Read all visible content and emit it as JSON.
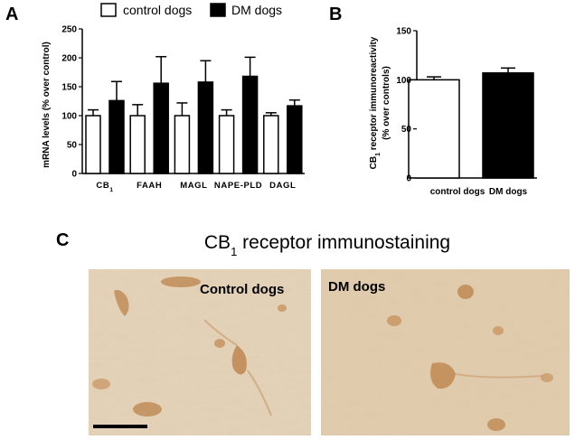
{
  "panels": {
    "a": "A",
    "b": "B",
    "c": "C"
  },
  "legend": {
    "items": [
      {
        "label": "control dogs",
        "color": "#ffffff"
      },
      {
        "label": "DM dogs",
        "color": "#000000"
      }
    ]
  },
  "chart_data": [
    {
      "type": "bar",
      "panel": "A",
      "ylabel": "mRNA levels (% over control)",
      "ylim": [
        0,
        250
      ],
      "yticks": [
        "0",
        "50",
        "100",
        "150",
        "200",
        "250"
      ],
      "categories": [
        "CB1",
        "FAAH",
        "MAGL",
        "NAPE-PLD",
        "DAGL"
      ],
      "series": [
        {
          "name": "control dogs",
          "color": "#ffffff",
          "values": [
            100,
            100,
            100,
            100,
            100
          ],
          "errors": [
            10,
            19,
            22,
            10,
            5
          ]
        },
        {
          "name": "DM dogs",
          "color": "#000000",
          "values": [
            126,
            156,
            158,
            168,
            117
          ],
          "errors": [
            33,
            46,
            37,
            33,
            10
          ]
        }
      ],
      "grid": false
    },
    {
      "type": "bar",
      "panel": "B",
      "ylabel_line1": "CB1 receptor immunoreactivity",
      "ylabel_line2": "(% over controls)",
      "ylim": [
        0,
        150
      ],
      "yticks": [
        "0",
        "50",
        "100",
        "150"
      ],
      "categories": [
        "control dogs",
        "DM dogs"
      ],
      "values": [
        100,
        107
      ],
      "errors": [
        3,
        5
      ],
      "colors": [
        "#ffffff",
        "#000000"
      ],
      "grid": false
    }
  ],
  "panel_c": {
    "title_main": "CB",
    "title_sub": "1",
    "title_rest": " receptor immunostaining",
    "images": [
      {
        "label": "Control dogs"
      },
      {
        "label": "DM dogs"
      }
    ]
  }
}
